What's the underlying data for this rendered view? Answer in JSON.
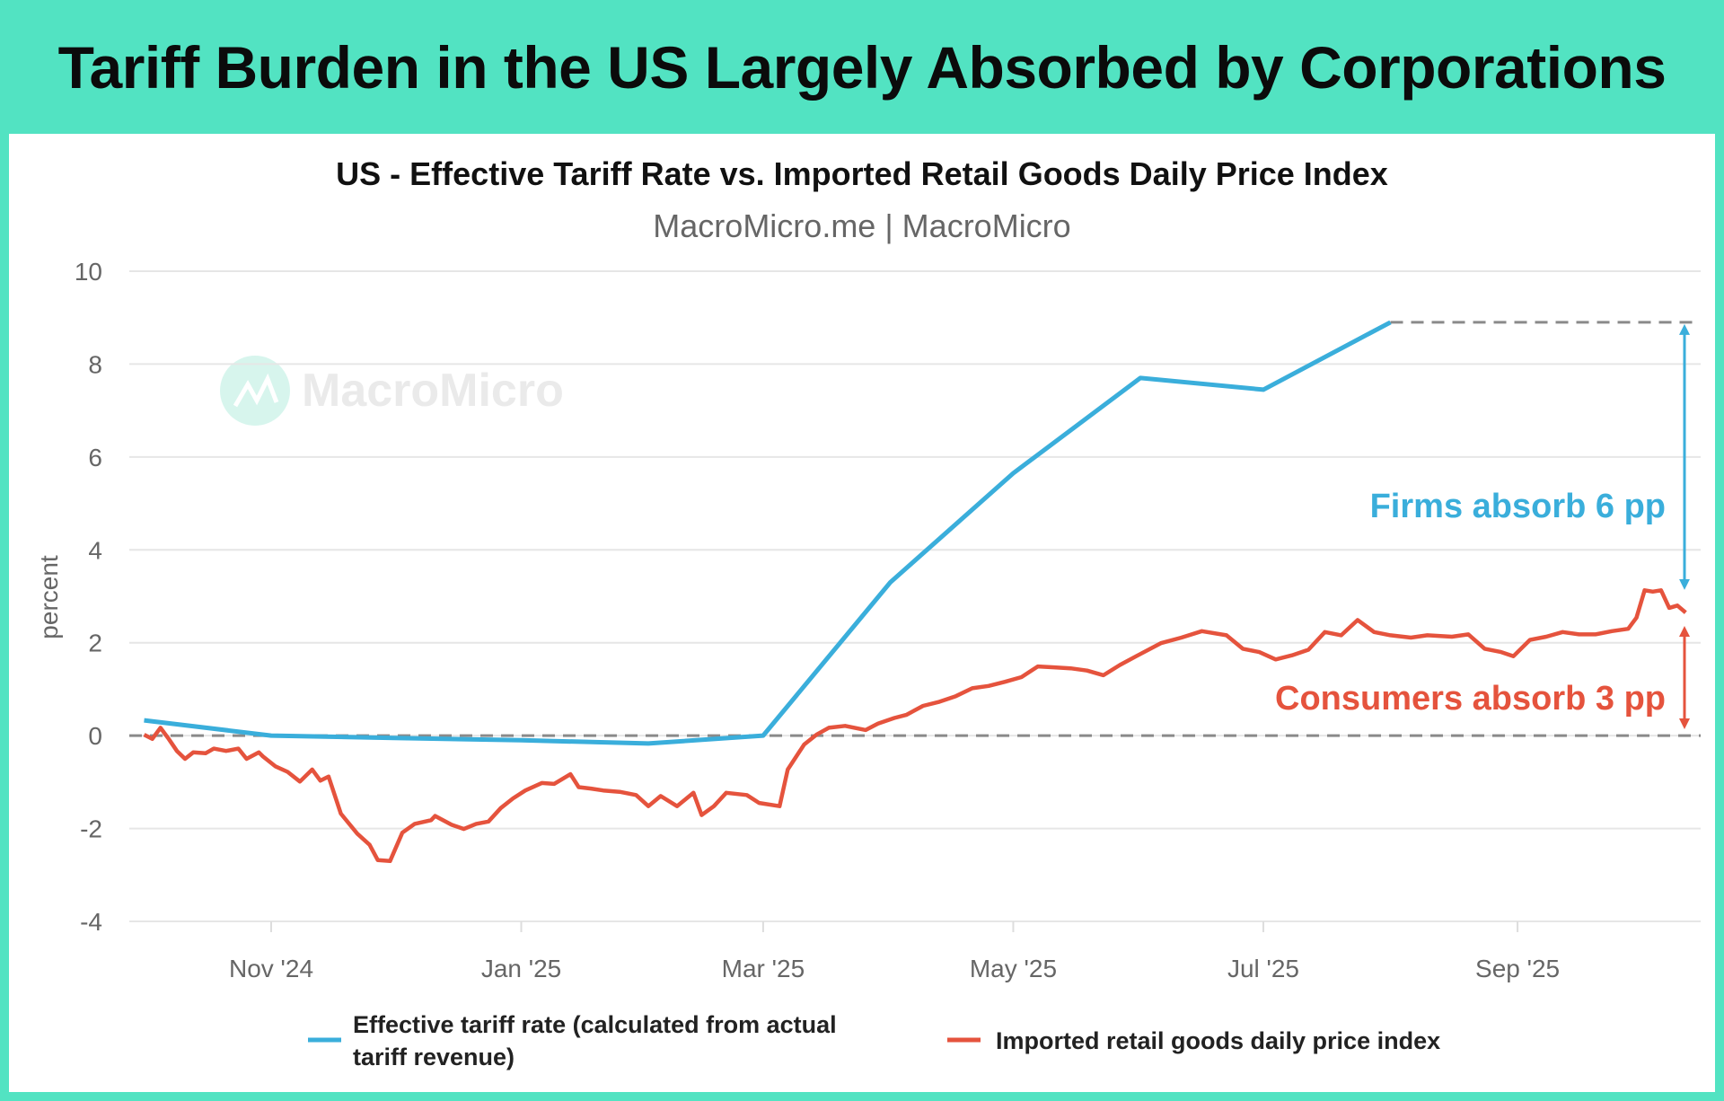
{
  "headline": "Tariff Burden in the US Largely Absorbed by Corporations",
  "colors": {
    "banner": "#52e3c2",
    "blue": "#3aaedb",
    "red": "#e5533d",
    "grid": "#e6e6e6",
    "zero": "#8a8a8a"
  },
  "watermark": "MacroMicro",
  "chart_data": {
    "type": "line",
    "title": "US - Effective Tariff Rate vs. Imported Retail Goods Daily Price Index",
    "subtitle": "MacroMicro.me | MacroMicro",
    "ylabel": "percent",
    "ylim": [
      -4,
      10
    ],
    "yticks": [
      -4,
      -2,
      0,
      2,
      4,
      6,
      8,
      10
    ],
    "x_origin": "2024-11-01",
    "x_unit": "days since x_origin",
    "xlim": [
      -31,
      345
    ],
    "xticks": [
      {
        "label": "Nov '24",
        "x": 0
      },
      {
        "label": "Jan '25",
        "x": 61
      },
      {
        "label": "Mar '25",
        "x": 120
      },
      {
        "label": "May '25",
        "x": 181
      },
      {
        "label": "Jul '25",
        "x": 242
      },
      {
        "label": "Sep '25",
        "x": 304
      }
    ],
    "grid": true,
    "reference_line": {
      "y": 0,
      "style": "dashed"
    },
    "series": [
      {
        "name": "Effective tariff rate (calculated from actual tariff revenue)",
        "legend_lines": [
          "Effective tariff rate (calculated from actual",
          "tariff revenue)"
        ],
        "color": "#3aaedb",
        "x": [
          -31,
          0,
          30,
          61,
          92,
          120,
          151,
          181,
          212,
          242,
          273
        ],
        "y": [
          0.33,
          0.0,
          -0.05,
          -0.1,
          -0.17,
          0.0,
          3.3,
          5.65,
          7.7,
          7.45,
          8.9
        ]
      },
      {
        "name": "Imported retail goods daily price index",
        "color": "#e5533d",
        "x": [
          -31,
          -29,
          -27,
          -25,
          -23,
          -21,
          -19,
          -16,
          -14,
          -11,
          -8,
          -6,
          -3,
          -2,
          1,
          4,
          7,
          10,
          12,
          14,
          17,
          21,
          24,
          26,
          29,
          32,
          35,
          39,
          40,
          44,
          47,
          50,
          53,
          56,
          59,
          62,
          66,
          69,
          73,
          75,
          78,
          81,
          85,
          89,
          92,
          95,
          99,
          103,
          105,
          108,
          111,
          116,
          119,
          124,
          126,
          130,
          133,
          136,
          140,
          145,
          148,
          152,
          155,
          159,
          163,
          167,
          171,
          175,
          179,
          183,
          187,
          191,
          195,
          199,
          203,
          207,
          211,
          217,
          222,
          227,
          233,
          237,
          241,
          245,
          249,
          253,
          257,
          261,
          265,
          269,
          273,
          278,
          282,
          288,
          292,
          296,
          300,
          303,
          307,
          311,
          315,
          319,
          323,
          327,
          331,
          333,
          335,
          337,
          339,
          341,
          343,
          345
        ],
        "y": [
          0.02,
          -0.07,
          0.17,
          -0.07,
          -0.33,
          -0.5,
          -0.36,
          -0.38,
          -0.28,
          -0.33,
          -0.28,
          -0.5,
          -0.36,
          -0.45,
          -0.66,
          -0.78,
          -0.99,
          -0.73,
          -0.97,
          -0.88,
          -1.68,
          -2.11,
          -2.35,
          -2.68,
          -2.7,
          -2.09,
          -1.9,
          -1.82,
          -1.73,
          -1.92,
          -2.01,
          -1.9,
          -1.85,
          -1.56,
          -1.35,
          -1.18,
          -1.02,
          -1.04,
          -0.83,
          -1.11,
          -1.14,
          -1.18,
          -1.21,
          -1.28,
          -1.52,
          -1.3,
          -1.52,
          -1.23,
          -1.71,
          -1.52,
          -1.23,
          -1.28,
          -1.45,
          -1.52,
          -0.73,
          -0.19,
          0.02,
          0.17,
          0.21,
          0.12,
          0.26,
          0.38,
          0.45,
          0.64,
          0.73,
          0.85,
          1.02,
          1.07,
          1.16,
          1.26,
          1.49,
          1.47,
          1.45,
          1.4,
          1.3,
          1.52,
          1.71,
          1.99,
          2.11,
          2.25,
          2.16,
          1.87,
          1.8,
          1.64,
          1.73,
          1.85,
          2.23,
          2.16,
          2.49,
          2.23,
          2.16,
          2.11,
          2.16,
          2.13,
          2.18,
          1.87,
          1.8,
          1.71,
          2.06,
          2.13,
          2.23,
          2.18,
          2.18,
          2.25,
          2.3,
          2.54,
          3.13,
          3.1,
          3.13,
          2.75,
          2.8,
          2.65
        ]
      }
    ],
    "annotations": [
      {
        "text": "Firms absorb 6 pp",
        "color": "#3aaedb",
        "from": 8.9,
        "to": 3.1
      },
      {
        "text": "Consumers absorb 3 pp",
        "color": "#e5533d",
        "from": 2.4,
        "to": 0.1
      }
    ],
    "legend_position": "bottom"
  }
}
